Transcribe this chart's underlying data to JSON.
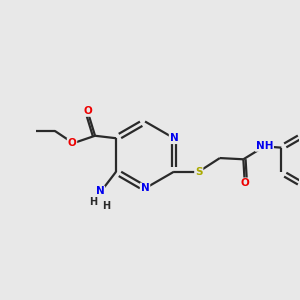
{
  "bg_color": "#e8e8e8",
  "bond_color": "#2a2a2a",
  "bond_width": 1.6,
  "atom_colors": {
    "N": "#0000ee",
    "O": "#ee0000",
    "S": "#aaaa00",
    "C": "#2a2a2a",
    "H": "#2a2a2a"
  },
  "font_size": 7.5,
  "fig_width": 3.0,
  "fig_height": 3.0,
  "dpi": 100,
  "xlim": [
    0,
    12
  ],
  "ylim": [
    0,
    12
  ]
}
